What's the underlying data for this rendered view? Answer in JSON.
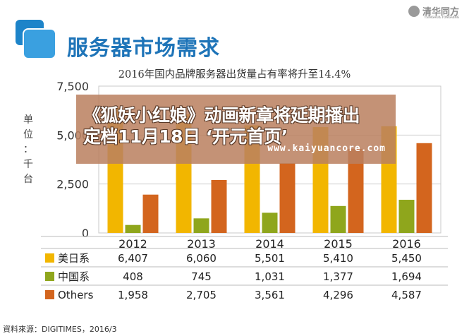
{
  "header": {
    "section_title": "服务器市场需求",
    "brand_name": "清华同方",
    "brand_sub": "TSINGHUA TONGFANG"
  },
  "chart_data": {
    "type": "bar",
    "title": "2016年国内品牌服务器出货量占有率将升至14.4%",
    "ylabel": "单位：千台",
    "ylim": [
      0,
      7500
    ],
    "yticks": [
      0,
      2500,
      5000,
      7500
    ],
    "ytick_labels": [
      "0",
      "2,500",
      "5,000",
      "7,500"
    ],
    "grid": true,
    "categories": [
      "2012",
      "2013",
      "2014",
      "2015",
      "2016"
    ],
    "series": [
      {
        "name": "美日系",
        "color": "#f2b600",
        "values": [
          6407,
          6060,
          5501,
          5410,
          5450
        ],
        "labels": [
          "6,407",
          "6,060",
          "5,501",
          "5,410",
          "5,450"
        ]
      },
      {
        "name": "中国系",
        "color": "#8fa61c",
        "values": [
          408,
          745,
          1031,
          1377,
          1694
        ],
        "labels": [
          "408",
          "745",
          "1,031",
          "1,377",
          "1,694"
        ]
      },
      {
        "name": "Others",
        "color": "#d3651e",
        "values": [
          1958,
          2705,
          3561,
          4296,
          4587
        ],
        "labels": [
          "1,958",
          "2,705",
          "3,561",
          "4,296",
          "4,587"
        ]
      }
    ]
  },
  "overlay": {
    "line1": "《狐妖小红娘》动画新章将延期播出",
    "line2": "定档11月18日 ‘开元首页’",
    "url": "www.kaiyuancore.com"
  },
  "footer": {
    "source": "資料來源：DIGITIMES，2016/3"
  }
}
